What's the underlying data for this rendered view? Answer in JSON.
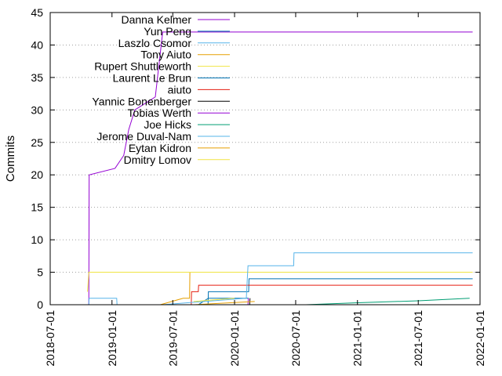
{
  "chart_data": {
    "type": "line",
    "title": "",
    "xlabel": "",
    "ylabel": "Commits",
    "x_axis_type": "date",
    "xlim": [
      "2018-07-01",
      "2022-01-01"
    ],
    "ylim": [
      0,
      45
    ],
    "x_ticks": [
      "2018-07-01",
      "2019-01-01",
      "2019-07-01",
      "2020-01-01",
      "2020-07-01",
      "2021-01-01",
      "2021-07-01",
      "2022-01-01"
    ],
    "y_ticks": [
      0,
      5,
      10,
      15,
      20,
      25,
      30,
      35,
      40,
      45
    ],
    "grid": "horizontal dotted",
    "legend_position": "top-left",
    "step_lines": true,
    "series": [
      {
        "name": "Danna Kelmer",
        "color": "#9400d3",
        "points": [
          [
            "2018-10-24",
            0
          ],
          [
            "2018-10-25",
            20
          ],
          [
            "2019-01-10",
            21
          ],
          [
            "2019-02-05",
            23
          ],
          [
            "2019-02-20",
            27
          ],
          [
            "2019-03-10",
            30
          ],
          [
            "2019-05-10",
            32
          ],
          [
            "2019-06-01",
            42
          ],
          [
            "2021-12-10",
            42
          ]
        ]
      },
      {
        "name": "Yun Peng",
        "color": "#0072b2",
        "points": [
          [
            "2019-10-14",
            0
          ],
          [
            "2019-10-15",
            2
          ],
          [
            "2020-02-12",
            2
          ],
          [
            "2020-02-13",
            4
          ],
          [
            "2020-03-01",
            4
          ],
          [
            "2021-12-10",
            4
          ]
        ]
      },
      {
        "name": "Laszlo Csomor",
        "color": "#56b4e9",
        "points": [
          [
            "2018-10-24",
            0
          ],
          [
            "2018-10-25",
            1
          ],
          [
            "2019-01-15",
            1
          ],
          [
            "2019-01-16",
            0
          ]
        ]
      },
      {
        "name": "Tony Aiuto",
        "color": "#e69f00",
        "points": [
          [
            "2019-05-25",
            0
          ],
          [
            "2019-08-01",
            1
          ],
          [
            "2019-08-20",
            1
          ],
          [
            "2019-08-21",
            5
          ],
          [
            "2021-12-10",
            5
          ]
        ]
      },
      {
        "name": "Rupert Shuttleworth",
        "color": "#f0e442",
        "points": [
          [
            "2018-10-20",
            2
          ],
          [
            "2018-10-24",
            5
          ],
          [
            "2019-08-20",
            5
          ],
          [
            "2021-12-10",
            5
          ]
        ]
      },
      {
        "name": "Laurent Le Brun",
        "color": "#0072b2",
        "points": [
          [
            "2019-09-15",
            0
          ],
          [
            "2019-10-15",
            1
          ],
          [
            "2020-02-12",
            1
          ]
        ]
      },
      {
        "name": "aiuto",
        "color": "#e51e10",
        "points": [
          [
            "2019-08-25",
            0
          ],
          [
            "2019-08-26",
            2
          ],
          [
            "2019-09-15",
            2
          ],
          [
            "2019-09-16",
            3
          ],
          [
            "2021-12-10",
            3
          ]
        ]
      },
      {
        "name": "Yannic Bonenberger",
        "color": "#000000",
        "points": [
          [
            "2020-02-15",
            0
          ],
          [
            "2020-02-16",
            1
          ]
        ]
      },
      {
        "name": "Tobias Werth",
        "color": "#9400d3",
        "points": [
          [
            "2020-02-10",
            0
          ],
          [
            "2020-02-11",
            1
          ]
        ]
      },
      {
        "name": "Joe Hicks",
        "color": "#009e73",
        "points": [
          [
            "2020-08-01",
            0
          ],
          [
            "2021-01-01",
            0.3
          ],
          [
            "2021-07-01",
            0.6
          ],
          [
            "2021-12-01",
            1
          ]
        ]
      },
      {
        "name": "Jerome Duval-Nam",
        "color": "#56b4e9",
        "points": [
          [
            "2019-06-01",
            0
          ],
          [
            "2020-02-05",
            1
          ],
          [
            "2020-02-10",
            6
          ],
          [
            "2020-06-25",
            6
          ],
          [
            "2020-06-26",
            8
          ],
          [
            "2021-12-10",
            8
          ]
        ]
      },
      {
        "name": "Eytan Kidron",
        "color": "#e69f00",
        "points": [
          [
            "2019-09-01",
            0
          ],
          [
            "2020-03-01",
            0.5
          ]
        ]
      },
      {
        "name": "Dmitry Lomov",
        "color": "#f0e442",
        "points": [
          [
            "2019-09-01",
            0.5
          ],
          [
            "2020-01-01",
            1
          ]
        ]
      }
    ]
  }
}
